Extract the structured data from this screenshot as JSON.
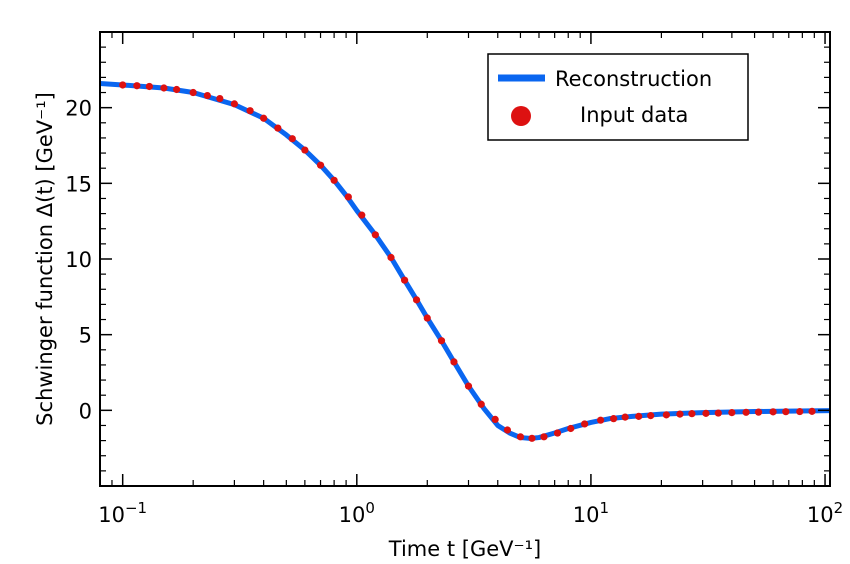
{
  "chart_data": {
    "type": "line",
    "xscale": "log",
    "xlim": [
      0.08,
      105
    ],
    "ylim": [
      -5,
      25
    ],
    "xlabel": "Time t [GeV⁻¹]",
    "ylabel": "Schwinger function Δ(t) [GeV⁻¹]",
    "x_ticks": [
      {
        "value": 0.1,
        "base": "10",
        "exp": "−1"
      },
      {
        "value": 1,
        "base": "10",
        "exp": "0"
      },
      {
        "value": 10,
        "base": "10",
        "exp": "1"
      },
      {
        "value": 100,
        "base": "10",
        "exp": "2"
      }
    ],
    "y_ticks": [
      {
        "value": 0,
        "label": "0"
      },
      {
        "value": 5,
        "label": "5"
      },
      {
        "value": 10,
        "label": "10"
      },
      {
        "value": 15,
        "label": "15"
      },
      {
        "value": 20,
        "label": "20"
      }
    ],
    "grid": false,
    "legend_position": "top-right",
    "series": [
      {
        "name": "Reconstruction",
        "kind": "line",
        "color": "#0a66f0",
        "x": [
          0.08,
          0.1,
          0.15,
          0.2,
          0.3,
          0.4,
          0.5,
          0.6,
          0.7,
          0.8,
          0.9,
          1.0,
          1.2,
          1.4,
          1.6,
          1.8,
          2.0,
          2.3,
          2.6,
          3.0,
          3.5,
          4.0,
          4.5,
          5.0,
          5.5,
          6.0,
          7.0,
          8.0,
          10,
          12,
          15,
          20,
          30,
          50,
          70,
          105
        ],
        "y": [
          21.6,
          21.5,
          21.3,
          21.0,
          20.2,
          19.3,
          18.2,
          17.2,
          16.2,
          15.2,
          14.2,
          13.2,
          11.6,
          10.1,
          8.6,
          7.3,
          6.1,
          4.6,
          3.2,
          1.6,
          0.1,
          -1.0,
          -1.5,
          -1.8,
          -1.85,
          -1.8,
          -1.5,
          -1.2,
          -0.8,
          -0.55,
          -0.4,
          -0.25,
          -0.15,
          -0.08,
          -0.05,
          -0.02
        ]
      },
      {
        "name": "Input data",
        "kind": "scatter",
        "color": "#dd1111",
        "x": [
          0.1,
          0.115,
          0.13,
          0.15,
          0.17,
          0.2,
          0.23,
          0.26,
          0.3,
          0.35,
          0.4,
          0.46,
          0.53,
          0.6,
          0.7,
          0.8,
          0.92,
          1.05,
          1.2,
          1.4,
          1.6,
          1.8,
          2.0,
          2.3,
          2.6,
          3.0,
          3.4,
          3.9,
          4.4,
          5.0,
          5.6,
          6.3,
          7.2,
          8.2,
          9.4,
          11,
          12.5,
          14,
          16,
          18,
          21,
          24,
          27,
          31,
          35,
          40,
          46,
          52,
          60,
          68,
          78,
          88
        ],
        "y": [
          21.5,
          21.45,
          21.4,
          21.3,
          21.2,
          21.0,
          20.8,
          20.6,
          20.25,
          19.8,
          19.3,
          18.65,
          17.95,
          17.2,
          16.2,
          15.2,
          14.1,
          12.9,
          11.6,
          10.1,
          8.6,
          7.3,
          6.1,
          4.6,
          3.2,
          1.6,
          0.4,
          -0.6,
          -1.3,
          -1.75,
          -1.85,
          -1.75,
          -1.5,
          -1.2,
          -0.9,
          -0.65,
          -0.55,
          -0.45,
          -0.4,
          -0.35,
          -0.3,
          -0.25,
          -0.22,
          -0.2,
          -0.18,
          -0.15,
          -0.13,
          -0.12,
          -0.1,
          -0.09,
          -0.08,
          -0.07
        ]
      }
    ]
  }
}
